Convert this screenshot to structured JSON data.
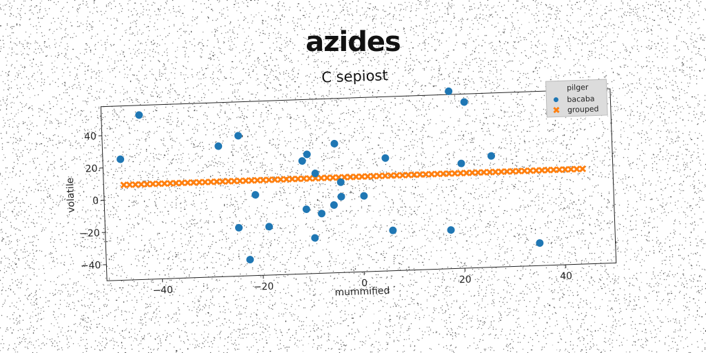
{
  "figure_title": "azides",
  "chart_data": {
    "type": "scatter",
    "title": "C sepiost",
    "xlabel": "mummified",
    "ylabel": "volatile",
    "xlim": [
      -51,
      50
    ],
    "ylim": [
      -50,
      58
    ],
    "xticks": [
      -40,
      -20,
      0,
      20,
      40
    ],
    "yticks": [
      -40,
      -20,
      0,
      20,
      40
    ],
    "xtick_labels": [
      "−40",
      "−20",
      "0",
      "20",
      "40"
    ],
    "ytick_labels": [
      "−40",
      "−20",
      "0",
      "20",
      "40"
    ],
    "grid": false,
    "legend": {
      "title": "pilger",
      "placement": "top-right",
      "entries": [
        "bacaba",
        "grouped"
      ]
    },
    "series": [
      {
        "name": "bacaba",
        "marker": "circle",
        "color": "#1f77b4",
        "points": [
          [
            -47.5,
            25
          ],
          [
            -43.5,
            52
          ],
          [
            -28,
            31
          ],
          [
            -24,
            37
          ],
          [
            -24.5,
            -20
          ],
          [
            -21,
            0
          ],
          [
            -22.5,
            -40
          ],
          [
            -18.5,
            -20
          ],
          [
            -11.5,
            20
          ],
          [
            -10.5,
            24
          ],
          [
            -11,
            -10
          ],
          [
            -9,
            12
          ],
          [
            -8,
            -13
          ],
          [
            -9.5,
            -28
          ],
          [
            -5.5,
            -8
          ],
          [
            -5,
            30
          ],
          [
            -4,
            6
          ],
          [
            -4,
            -3
          ],
          [
            0.5,
            -3
          ],
          [
            5,
            20
          ],
          [
            6,
            -25
          ],
          [
            17.5,
            -26
          ],
          [
            18,
            60
          ],
          [
            20,
            15
          ],
          [
            21,
            53
          ],
          [
            26,
            19
          ],
          [
            35,
            -36
          ]
        ]
      },
      {
        "name": "grouped",
        "marker": "x",
        "color": "#ff7f0e",
        "x_start": -47,
        "x_end": 44,
        "count": 80,
        "y": 9
      }
    ]
  }
}
